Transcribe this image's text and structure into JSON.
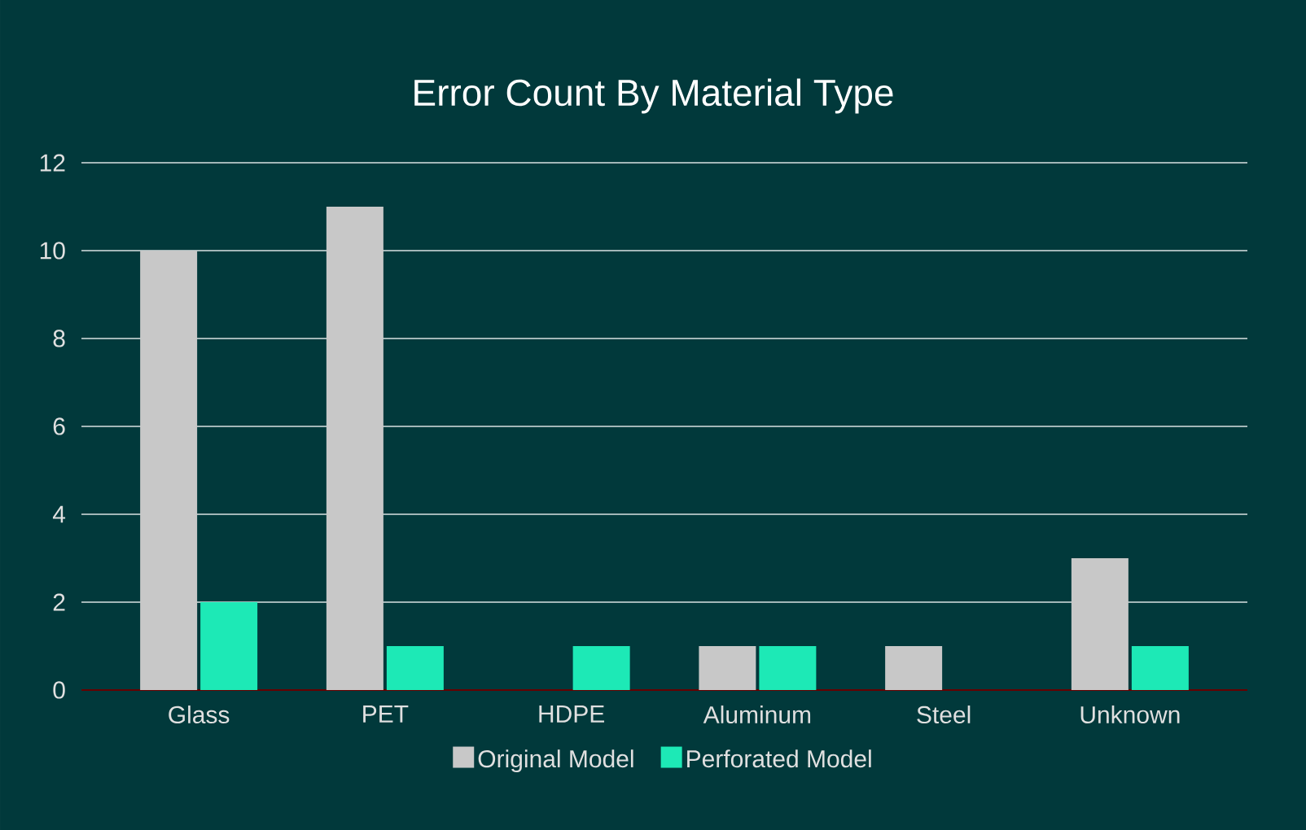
{
  "chart_data": {
    "type": "bar",
    "title": "Error Count By Material Type",
    "categories": [
      "Glass",
      "PET",
      "HDPE",
      "Aluminum",
      "Steel",
      "Unknown"
    ],
    "series": [
      {
        "name": "Original Model",
        "color": "#c8c8c8",
        "values": [
          10,
          11,
          0,
          1,
          1,
          3
        ]
      },
      {
        "name": "Perforated Model",
        "color": "#1de9b6",
        "values": [
          2,
          1,
          1,
          1,
          0,
          1
        ]
      }
    ],
    "ylim": [
      0,
      12
    ],
    "yticks": [
      0,
      2,
      4,
      6,
      8,
      10,
      12
    ],
    "grid": "y",
    "legend": "bottom"
  }
}
